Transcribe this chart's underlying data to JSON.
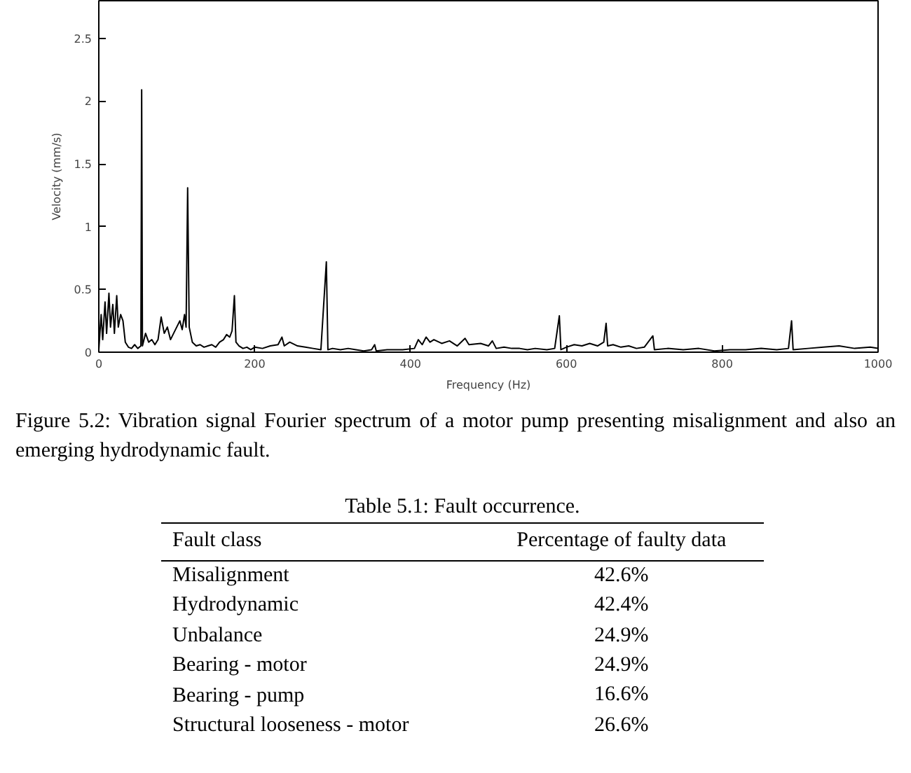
{
  "chart_data": {
    "type": "line",
    "xlabel": "Frequency (Hz)",
    "ylabel": "Velocity (mm/s)",
    "x": [
      0,
      3,
      5,
      8,
      10,
      13,
      15,
      18,
      20,
      23,
      25,
      28,
      31,
      34,
      38,
      42,
      46,
      50,
      54,
      55,
      56,
      60,
      64,
      68,
      72,
      76,
      80,
      84,
      88,
      92,
      96,
      100,
      104,
      107,
      110,
      112,
      114,
      116,
      120,
      125,
      130,
      135,
      140,
      145,
      150,
      155,
      160,
      164,
      168,
      171,
      174,
      176,
      180,
      185,
      190,
      195,
      200,
      210,
      220,
      230,
      235,
      238,
      245,
      255,
      265,
      275,
      285,
      292,
      294,
      300,
      310,
      320,
      330,
      340,
      350,
      354,
      356,
      370,
      390,
      405,
      410,
      415,
      420,
      425,
      430,
      440,
      450,
      460,
      470,
      475,
      490,
      500,
      505,
      510,
      520,
      530,
      540,
      550,
      560,
      575,
      585,
      591,
      593,
      600,
      610,
      620,
      630,
      640,
      648,
      651,
      653,
      660,
      670,
      680,
      690,
      700,
      711,
      713,
      730,
      750,
      770,
      790,
      810,
      830,
      850,
      870,
      885,
      889,
      891,
      910,
      930,
      950,
      970,
      990,
      1000
    ],
    "series": [
      {
        "color": "#000000",
        "values": [
          0.02,
          0.3,
          0.1,
          0.4,
          0.15,
          0.47,
          0.2,
          0.38,
          0.15,
          0.45,
          0.2,
          0.3,
          0.25,
          0.08,
          0.04,
          0.03,
          0.06,
          0.03,
          0.05,
          2.09,
          0.05,
          0.15,
          0.08,
          0.1,
          0.06,
          0.1,
          0.28,
          0.15,
          0.2,
          0.1,
          0.15,
          0.2,
          0.25,
          0.18,
          0.3,
          0.2,
          1.31,
          0.2,
          0.08,
          0.05,
          0.06,
          0.04,
          0.05,
          0.06,
          0.04,
          0.08,
          0.1,
          0.14,
          0.12,
          0.17,
          0.45,
          0.08,
          0.05,
          0.03,
          0.04,
          0.02,
          0.04,
          0.03,
          0.05,
          0.06,
          0.12,
          0.05,
          0.08,
          0.05,
          0.04,
          0.03,
          0.02,
          0.72,
          0.02,
          0.03,
          0.02,
          0.03,
          0.02,
          0.01,
          0.02,
          0.06,
          0.01,
          0.02,
          0.02,
          0.03,
          0.1,
          0.06,
          0.12,
          0.08,
          0.1,
          0.07,
          0.09,
          0.05,
          0.11,
          0.06,
          0.07,
          0.05,
          0.09,
          0.03,
          0.04,
          0.03,
          0.03,
          0.02,
          0.03,
          0.02,
          0.03,
          0.29,
          0.02,
          0.04,
          0.06,
          0.05,
          0.07,
          0.05,
          0.08,
          0.23,
          0.05,
          0.06,
          0.04,
          0.05,
          0.03,
          0.04,
          0.13,
          0.02,
          0.03,
          0.02,
          0.03,
          0.01,
          0.02,
          0.02,
          0.03,
          0.02,
          0.03,
          0.25,
          0.02,
          0.03,
          0.04,
          0.05,
          0.03,
          0.04,
          0.03
        ]
      }
    ],
    "xlim": [
      0,
      1000
    ],
    "ylim": [
      0,
      2.8
    ],
    "xticks": [
      0,
      200,
      400,
      600,
      800,
      1000
    ],
    "yticks": [
      0,
      0.5,
      1,
      1.5,
      2,
      2.5
    ],
    "grid": false,
    "marker": "none",
    "line_style": "solid",
    "annotations": [
      "Figure 5.2: Vibration signal Fourier spectrum of a motor pump presenting misalignment and also an emerging hydrodynamic fault.",
      "Table 5.1: Fault occurrence.",
      "Fault class",
      "Percentage of faulty data",
      "Misalignment",
      "42.6%",
      "Hydrodynamic",
      "42.4%",
      "Unbalance",
      "24.9%",
      "Bearing - motor",
      "24.9%",
      "Bearing - pump",
      "16.6%",
      "Structural looseness - motor",
      "26.6%"
    ]
  }
}
